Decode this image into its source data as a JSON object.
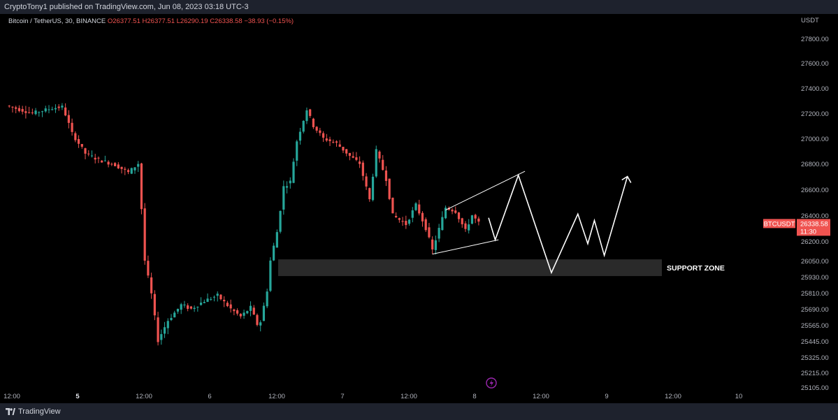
{
  "header": {
    "published": "CryptoTony1 published on TradingView.com, Jun 08, 2023 03:18 UTC-3"
  },
  "legend": {
    "symbol": "Bitcoin / TetherUS, 30, BINANCE",
    "open": "O26377.51",
    "high": "H26377.51",
    "low": "L26290.19",
    "close": "C26338.58",
    "change": "−38.93 (−0.15%)"
  },
  "footer": {
    "brand": "TradingView",
    "logo_icon": "tradingview-logo-icon"
  },
  "colors": {
    "up": "#26a69a",
    "down": "#ef5350",
    "price_label": "#ef5350",
    "zone": "#2a2a2a"
  },
  "price_label": {
    "ticker": "BTCUSDT",
    "price": "26338.58",
    "countdown": "11:30"
  },
  "support_zone": {
    "label": "SUPPORT ZONE",
    "low": 25935,
    "high": 26060
  },
  "chart_data": {
    "type": "candlestick",
    "currency": "USDT",
    "ylim": [
      25100,
      27900
    ],
    "y_ticks": [
      {
        "label": "27800.00",
        "value": 27800
      },
      {
        "label": "27600.00",
        "value": 27600
      },
      {
        "label": "27400.00",
        "value": 27400
      },
      {
        "label": "27200.00",
        "value": 27200
      },
      {
        "label": "27000.00",
        "value": 27000
      },
      {
        "label": "26800.00",
        "value": 26800
      },
      {
        "label": "26600.00",
        "value": 26600
      },
      {
        "label": "26400.00",
        "value": 26400
      },
      {
        "label": "26200.00",
        "value": 26200
      },
      {
        "label": "26050.00",
        "value": 26050
      },
      {
        "label": "25930.00",
        "value": 25930
      },
      {
        "label": "25810.00",
        "value": 25810
      },
      {
        "label": "25690.00",
        "value": 25690
      },
      {
        "label": "25565.00",
        "value": 25565
      },
      {
        "label": "25445.00",
        "value": 25445
      },
      {
        "label": "25325.00",
        "value": 25325
      },
      {
        "label": "25215.00",
        "value": 25215
      },
      {
        "label": "25105.00",
        "value": 25105
      }
    ],
    "x_ticks": [
      {
        "label": "12:00",
        "bold": false
      },
      {
        "label": "5",
        "bold": true
      },
      {
        "label": "12:00",
        "bold": false
      },
      {
        "label": "6",
        "bold": false
      },
      {
        "label": "12:00",
        "bold": false
      },
      {
        "label": "7",
        "bold": false
      },
      {
        "label": "12:00",
        "bold": false
      },
      {
        "label": "8",
        "bold": false
      },
      {
        "label": "12:00",
        "bold": false
      },
      {
        "label": "9",
        "bold": false
      },
      {
        "label": "12:00",
        "bold": false
      },
      {
        "label": "10",
        "bold": false
      }
    ],
    "anchors": [
      [
        0,
        27260
      ],
      [
        8,
        27200
      ],
      [
        14,
        27240
      ],
      [
        17,
        27250
      ],
      [
        18,
        27190
      ],
      [
        20,
        27040
      ],
      [
        24,
        26880
      ],
      [
        28,
        26830
      ],
      [
        33,
        26790
      ],
      [
        37,
        26730
      ],
      [
        40,
        26800
      ],
      [
        41,
        26450
      ],
      [
        42,
        26050
      ],
      [
        44,
        25800
      ],
      [
        46,
        25450
      ],
      [
        49,
        25600
      ],
      [
        53,
        25720
      ],
      [
        56,
        25690
      ],
      [
        60,
        25750
      ],
      [
        64,
        25790
      ],
      [
        68,
        25690
      ],
      [
        71,
        25630
      ],
      [
        74,
        25700
      ],
      [
        76,
        25570
      ],
      [
        77,
        25590
      ],
      [
        79,
        25830
      ],
      [
        80,
        26050
      ],
      [
        82,
        26270
      ],
      [
        84,
        26620
      ],
      [
        86,
        26660
      ],
      [
        88,
        26980
      ],
      [
        91,
        27230
      ],
      [
        93,
        27100
      ],
      [
        96,
        27000
      ],
      [
        100,
        26960
      ],
      [
        104,
        26860
      ],
      [
        107,
        26800
      ],
      [
        110,
        26520
      ],
      [
        112,
        26900
      ],
      [
        115,
        26680
      ],
      [
        117,
        26400
      ],
      [
        121,
        26330
      ],
      [
        124,
        26480
      ],
      [
        127,
        26300
      ],
      [
        129,
        26130
      ],
      [
        133,
        26460
      ],
      [
        136,
        26430
      ],
      [
        139,
        26280
      ],
      [
        141,
        26400
      ],
      [
        143,
        26340
      ]
    ],
    "annotations": [
      {
        "type": "line",
        "points": [
          [
            129,
            26100
          ],
          [
            149,
            26210
          ]
        ]
      },
      {
        "type": "line",
        "points": [
          [
            133,
            26440
          ],
          [
            157,
            26740
          ]
        ]
      },
      {
        "type": "path",
        "points": [
          [
            146,
            26380
          ],
          [
            148,
            26210
          ],
          [
            155,
            26710
          ],
          [
            165,
            25960
          ],
          [
            173,
            26410
          ],
          [
            176,
            26180
          ],
          [
            178,
            26360
          ],
          [
            181,
            26090
          ],
          [
            188,
            26700
          ]
        ]
      },
      {
        "type": "arrowhead",
        "at": [
          188,
          26700
        ]
      }
    ]
  }
}
